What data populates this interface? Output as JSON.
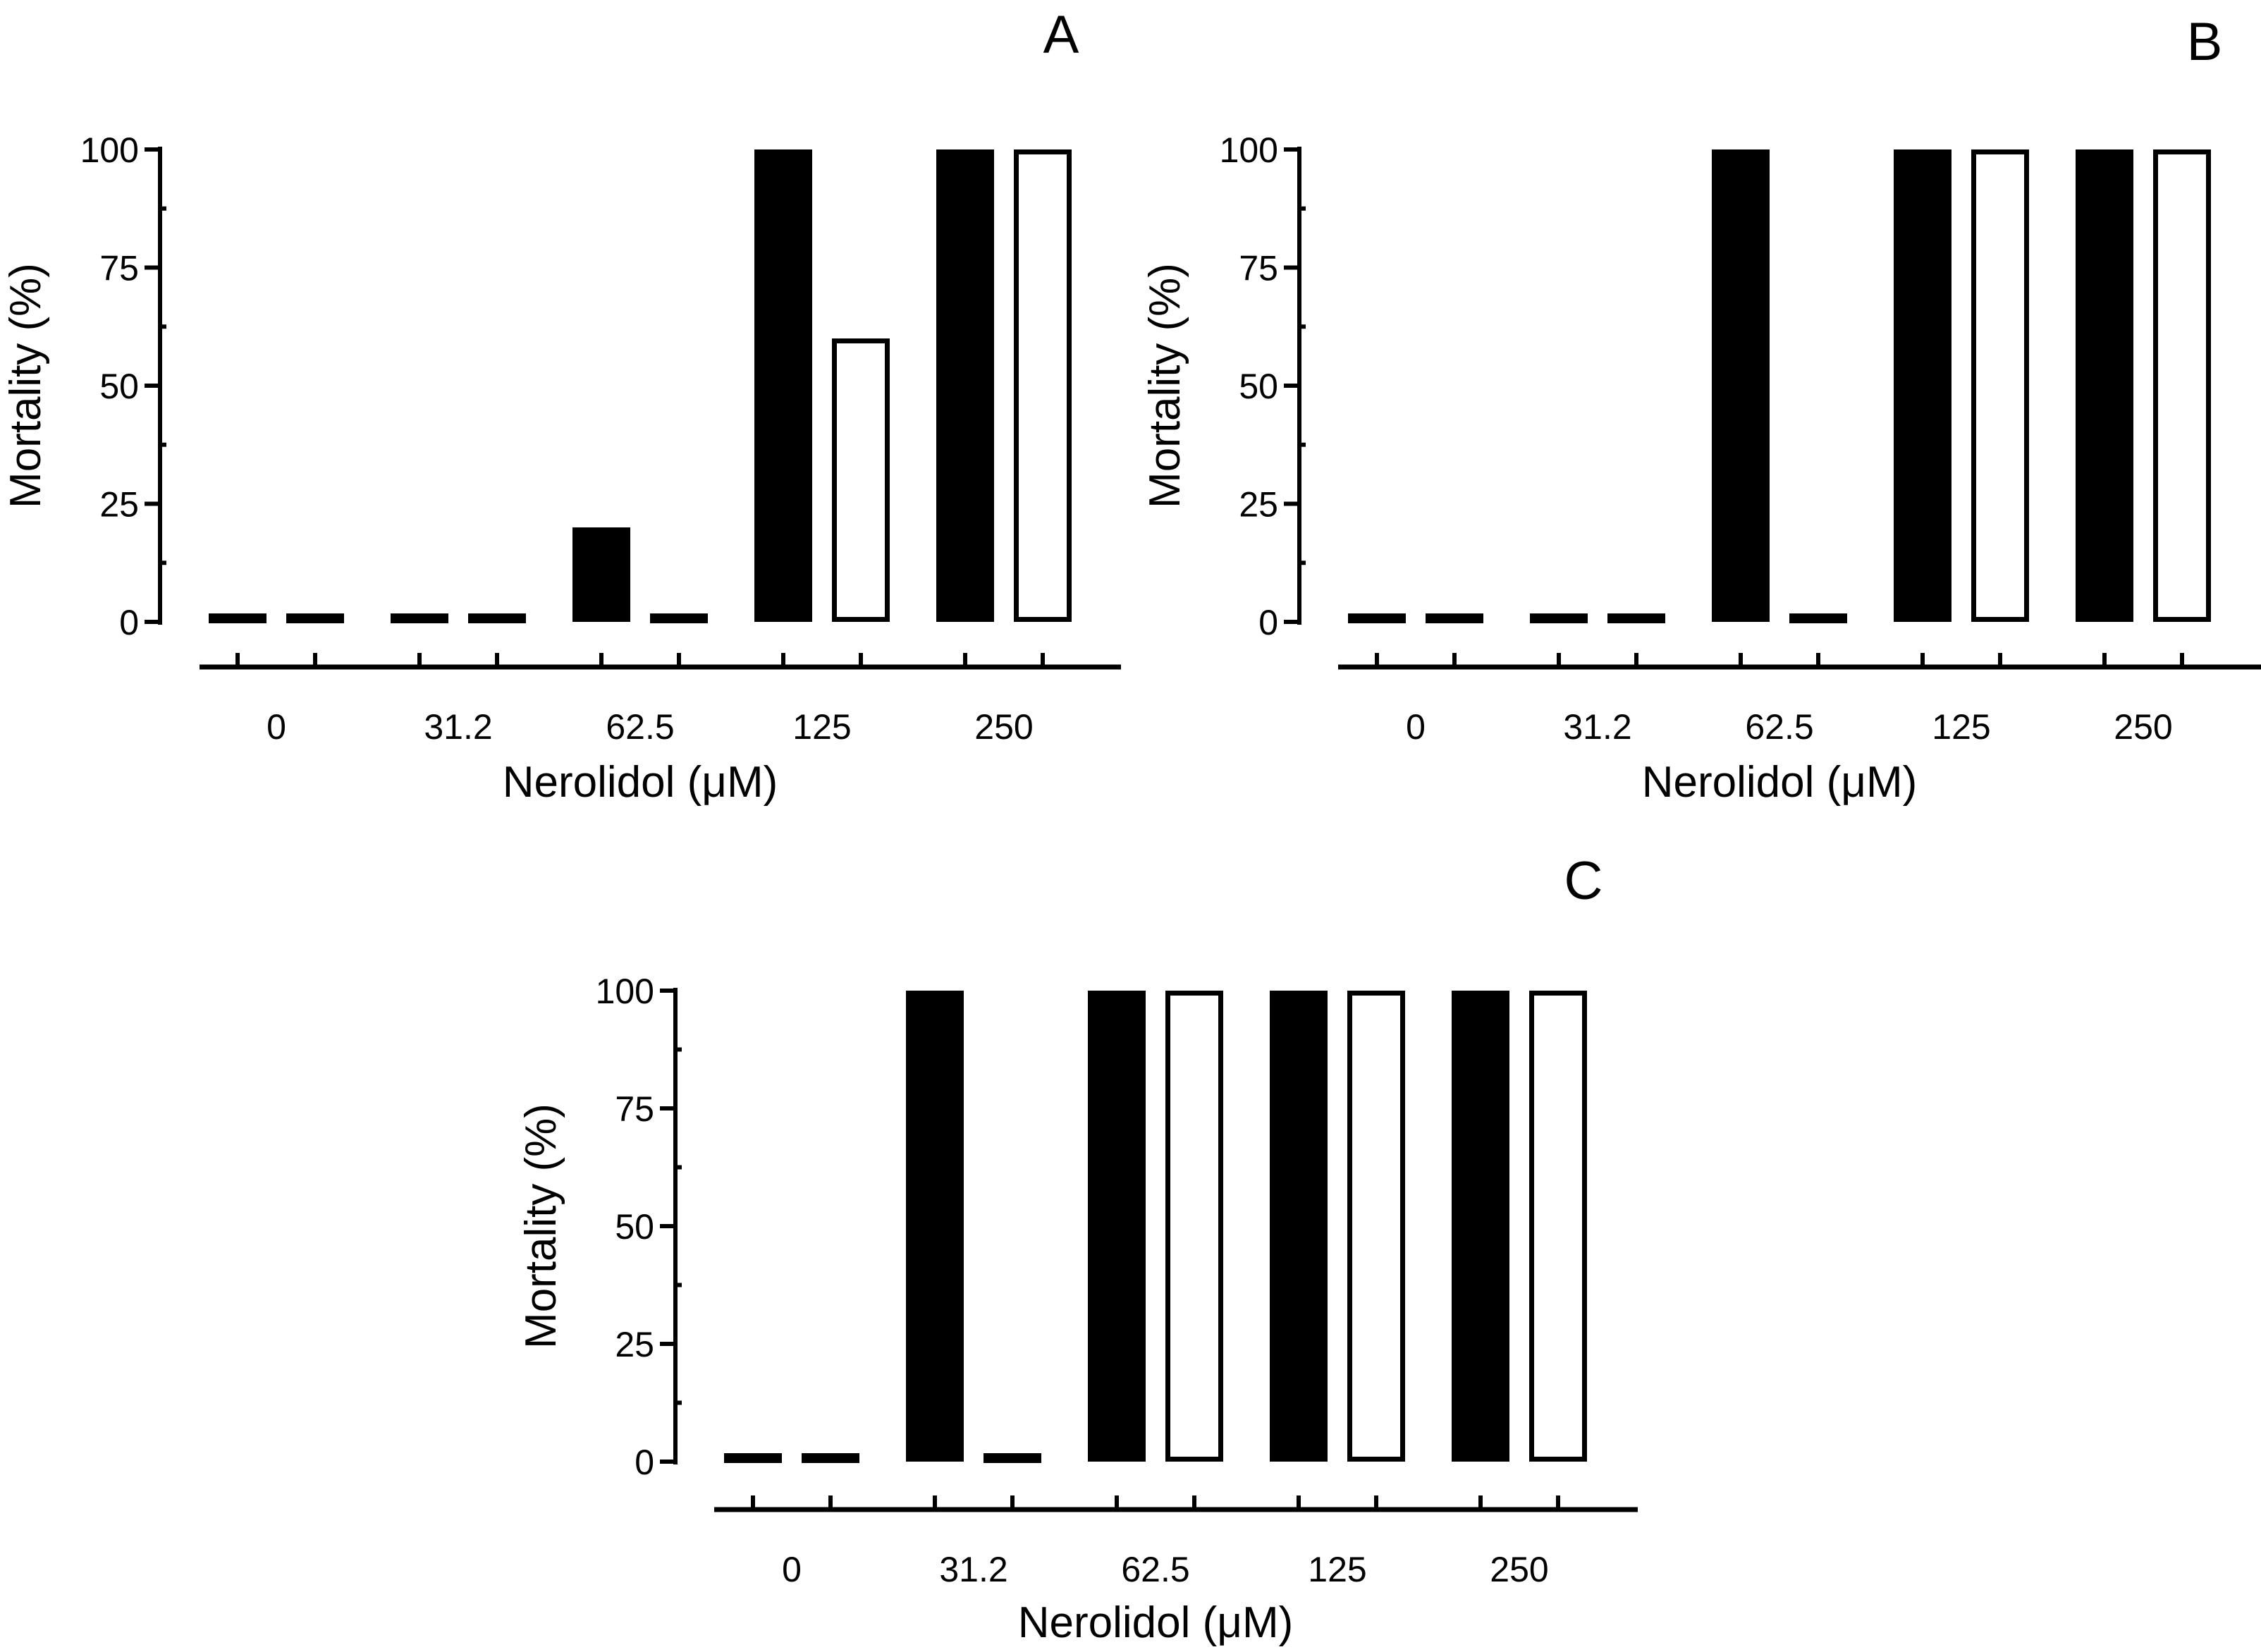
{
  "chart_data": [
    {
      "panel": "A",
      "type": "bar",
      "categories": [
        "0",
        "31.2",
        "62.5",
        "125",
        "250"
      ],
      "series": [
        {
          "name": "filled",
          "color": "#000000",
          "values": [
            0,
            0,
            20,
            100,
            100
          ]
        },
        {
          "name": "open",
          "color": "#ffffff",
          "values": [
            0,
            0,
            0,
            60,
            100
          ]
        }
      ],
      "xlabel": "Nerolidol (μM)",
      "ylabel": "Mortality (%)",
      "yticks": [
        "0",
        "25",
        "50",
        "75",
        "100"
      ],
      "ylim": [
        0,
        100
      ],
      "grid": false
    },
    {
      "panel": "B",
      "type": "bar",
      "categories": [
        "0",
        "31.2",
        "62.5",
        "125",
        "250"
      ],
      "series": [
        {
          "name": "filled",
          "color": "#000000",
          "values": [
            0,
            0,
            100,
            100,
            100
          ]
        },
        {
          "name": "open",
          "color": "#ffffff",
          "values": [
            0,
            0,
            0,
            100,
            100
          ]
        }
      ],
      "xlabel": "Nerolidol (μM)",
      "ylabel": "Mortality (%)",
      "yticks": [
        "0",
        "25",
        "50",
        "75",
        "100"
      ],
      "ylim": [
        0,
        100
      ],
      "grid": false
    },
    {
      "panel": "C",
      "type": "bar",
      "categories": [
        "0",
        "31.2",
        "62.5",
        "125",
        "250"
      ],
      "series": [
        {
          "name": "filled",
          "color": "#000000",
          "values": [
            0,
            100,
            100,
            100,
            100
          ]
        },
        {
          "name": "open",
          "color": "#ffffff",
          "values": [
            0,
            0,
            100,
            100,
            100
          ]
        }
      ],
      "xlabel": "Nerolidol (μM)",
      "ylabel": "Mortality (%)",
      "yticks": [
        "0",
        "25",
        "50",
        "75",
        "100"
      ],
      "ylim": [
        0,
        100
      ],
      "grid": false
    }
  ]
}
